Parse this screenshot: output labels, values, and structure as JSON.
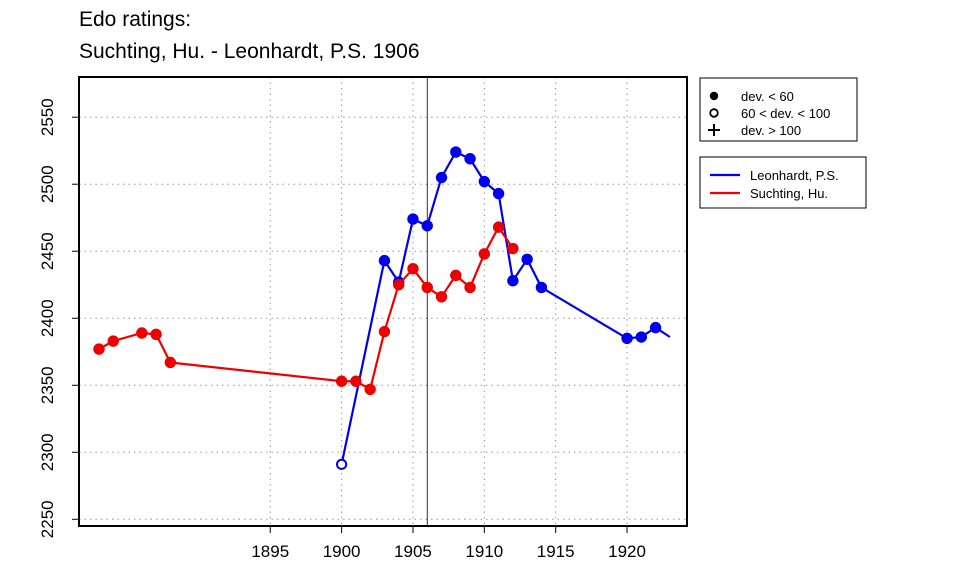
{
  "title_line1": "Edo ratings:",
  "title_line2": "Suchting, Hu. - Leonhardt, P.S. 1906",
  "chart_data": {
    "type": "line",
    "title": "Edo ratings: Suchting, Hu. - Leonhardt, P.S. 1906",
    "xlabel": "",
    "ylabel": "",
    "xlim": [
      1881.6,
      1924.2
    ],
    "ylim": [
      2245,
      2580
    ],
    "x_ticks": [
      1895,
      1900,
      1905,
      1910,
      1915,
      1920
    ],
    "y_ticks": [
      2250,
      2300,
      2350,
      2400,
      2450,
      2500,
      2550
    ],
    "grid": "dotted",
    "reference_line_x": 1906,
    "series": [
      {
        "name": "Leonhardt, P.S.",
        "color": "#0000ee",
        "points": [
          {
            "x": 1900,
            "y": 2291,
            "marker": "open"
          },
          {
            "x": 1903,
            "y": 2443,
            "marker": "filled"
          },
          {
            "x": 1904,
            "y": 2427,
            "marker": "filled"
          },
          {
            "x": 1905,
            "y": 2474,
            "marker": "filled"
          },
          {
            "x": 1906,
            "y": 2469,
            "marker": "filled"
          },
          {
            "x": 1907,
            "y": 2505,
            "marker": "filled"
          },
          {
            "x": 1908,
            "y": 2524,
            "marker": "filled"
          },
          {
            "x": 1909,
            "y": 2519,
            "marker": "filled"
          },
          {
            "x": 1910,
            "y": 2502,
            "marker": "filled"
          },
          {
            "x": 1911,
            "y": 2493,
            "marker": "filled"
          },
          {
            "x": 1912,
            "y": 2428,
            "marker": "filled"
          },
          {
            "x": 1913,
            "y": 2444,
            "marker": "filled"
          },
          {
            "x": 1914,
            "y": 2423,
            "marker": "filled"
          },
          {
            "x": 1920,
            "y": 2385,
            "marker": "filled"
          },
          {
            "x": 1921,
            "y": 2386,
            "marker": "filled"
          },
          {
            "x": 1922,
            "y": 2393,
            "marker": "filled"
          },
          {
            "x": 1923,
            "y": 2386,
            "marker": "none"
          }
        ]
      },
      {
        "name": "Suchting, Hu.",
        "color": "#ee0000",
        "points": [
          {
            "x": 1883,
            "y": 2377,
            "marker": "filled"
          },
          {
            "x": 1884,
            "y": 2383,
            "marker": "filled"
          },
          {
            "x": 1886,
            "y": 2389,
            "marker": "filled"
          },
          {
            "x": 1887,
            "y": 2388,
            "marker": "filled"
          },
          {
            "x": 1888,
            "y": 2367,
            "marker": "filled"
          },
          {
            "x": 1900,
            "y": 2353,
            "marker": "filled"
          },
          {
            "x": 1901,
            "y": 2353,
            "marker": "filled"
          },
          {
            "x": 1902,
            "y": 2347,
            "marker": "filled"
          },
          {
            "x": 1903,
            "y": 2390,
            "marker": "filled"
          },
          {
            "x": 1904,
            "y": 2425,
            "marker": "filled"
          },
          {
            "x": 1905,
            "y": 2437,
            "marker": "filled"
          },
          {
            "x": 1906,
            "y": 2423,
            "marker": "filled"
          },
          {
            "x": 1907,
            "y": 2416,
            "marker": "filled"
          },
          {
            "x": 1908,
            "y": 2432,
            "marker": "filled"
          },
          {
            "x": 1909,
            "y": 2423,
            "marker": "filled"
          },
          {
            "x": 1910,
            "y": 2448,
            "marker": "filled"
          },
          {
            "x": 1911,
            "y": 2468,
            "marker": "filled"
          },
          {
            "x": 1912,
            "y": 2452,
            "marker": "filled"
          }
        ]
      }
    ],
    "marker_legend": [
      {
        "symbol": "filled",
        "label": "dev. < 60"
      },
      {
        "symbol": "open",
        "label": "60 < dev. < 100"
      },
      {
        "symbol": "plus",
        "label": "dev. > 100"
      }
    ],
    "legend_position": "right"
  }
}
